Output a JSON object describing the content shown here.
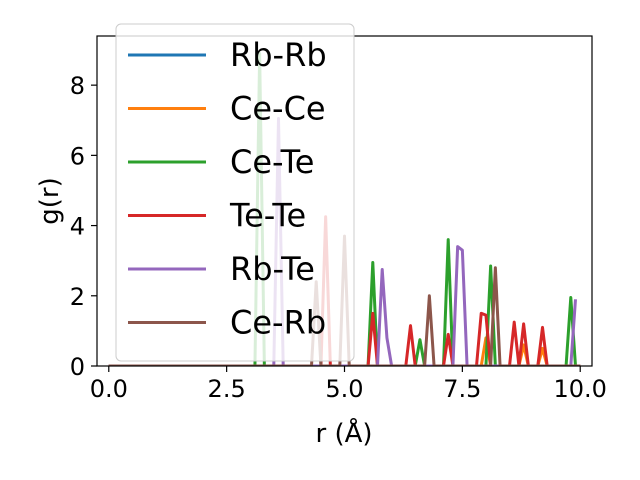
{
  "chart_data": {
    "type": "line",
    "title": "",
    "xlabel": "r (Å)",
    "ylabel": "g(r)",
    "xlim": [
      -0.25,
      10.25
    ],
    "ylim": [
      0,
      9.4
    ],
    "xticks": [
      0.0,
      2.5,
      5.0,
      7.5,
      10.0
    ],
    "xtick_labels": [
      "0.0",
      "2.5",
      "5.0",
      "7.5",
      "10.0"
    ],
    "yticks": [
      0,
      2,
      4,
      6,
      8
    ],
    "ytick_labels": [
      "0",
      "2",
      "4",
      "6",
      "8"
    ],
    "grid": false,
    "legend_position": "upper-left",
    "series": [
      {
        "name": "Rb-Rb",
        "color": "#1f77b4",
        "x": [
          0,
          5.1,
          5.2,
          5.3,
          10.0
        ],
        "y": [
          0,
          0,
          0,
          0,
          0
        ]
      },
      {
        "name": "Ce-Ce",
        "color": "#ff7f0e",
        "x": [
          0,
          7.9,
          8.0,
          8.1,
          8.7,
          8.8,
          8.9,
          9.1,
          9.2,
          9.3,
          10.0
        ],
        "y": [
          0,
          0,
          0.8,
          0,
          0,
          0.6,
          0,
          0,
          0.5,
          0,
          0
        ]
      },
      {
        "name": "Ce-Te",
        "color": "#2ca02c",
        "x": [
          0,
          3.1,
          3.2,
          3.3,
          5.5,
          5.6,
          5.7,
          6.5,
          6.6,
          6.7,
          7.1,
          7.2,
          7.3,
          8.0,
          8.1,
          8.2,
          9.7,
          9.8,
          9.9
        ],
        "y": [
          0,
          0,
          8.9,
          0,
          0,
          2.95,
          0,
          0,
          0.75,
          0,
          0,
          3.6,
          0,
          0,
          2.85,
          0,
          0,
          1.95,
          0
        ]
      },
      {
        "name": "Te-Te",
        "color": "#d62728",
        "x": [
          0,
          4.5,
          4.6,
          4.7,
          5.5,
          5.6,
          5.7,
          6.3,
          6.4,
          6.5,
          7.1,
          7.2,
          7.3,
          7.8,
          7.9,
          8.0,
          8.1,
          8.5,
          8.6,
          8.7,
          8.8,
          8.9,
          9.1,
          9.2,
          9.3,
          10.0
        ],
        "y": [
          0,
          0,
          4.25,
          0,
          0,
          1.5,
          0,
          0,
          1.15,
          0,
          0,
          0.9,
          0,
          0,
          1.5,
          1.45,
          0,
          0,
          1.25,
          0,
          1.2,
          0,
          0,
          1.1,
          0,
          0
        ]
      },
      {
        "name": "Rb-Te",
        "color": "#9467bd",
        "x": [
          0,
          3.5,
          3.6,
          3.7,
          5.6,
          5.7,
          5.8,
          5.9,
          6.0,
          7.3,
          7.4,
          7.5,
          7.6,
          9.8,
          9.9
        ],
        "y": [
          0,
          0,
          7.05,
          0,
          0,
          0,
          2.75,
          0.8,
          0,
          0,
          3.4,
          3.3,
          0,
          0,
          1.9
        ]
      },
      {
        "name": "Ce-Rb",
        "color": "#8c564b",
        "x": [
          0,
          4.3,
          4.4,
          4.5,
          4.9,
          5.0,
          5.1,
          6.7,
          6.8,
          6.9,
          8.1,
          8.2,
          8.3,
          10.0
        ],
        "y": [
          0,
          0,
          2.4,
          0,
          0,
          3.7,
          0,
          0,
          2.0,
          0,
          0,
          2.8,
          0,
          0
        ]
      }
    ]
  }
}
